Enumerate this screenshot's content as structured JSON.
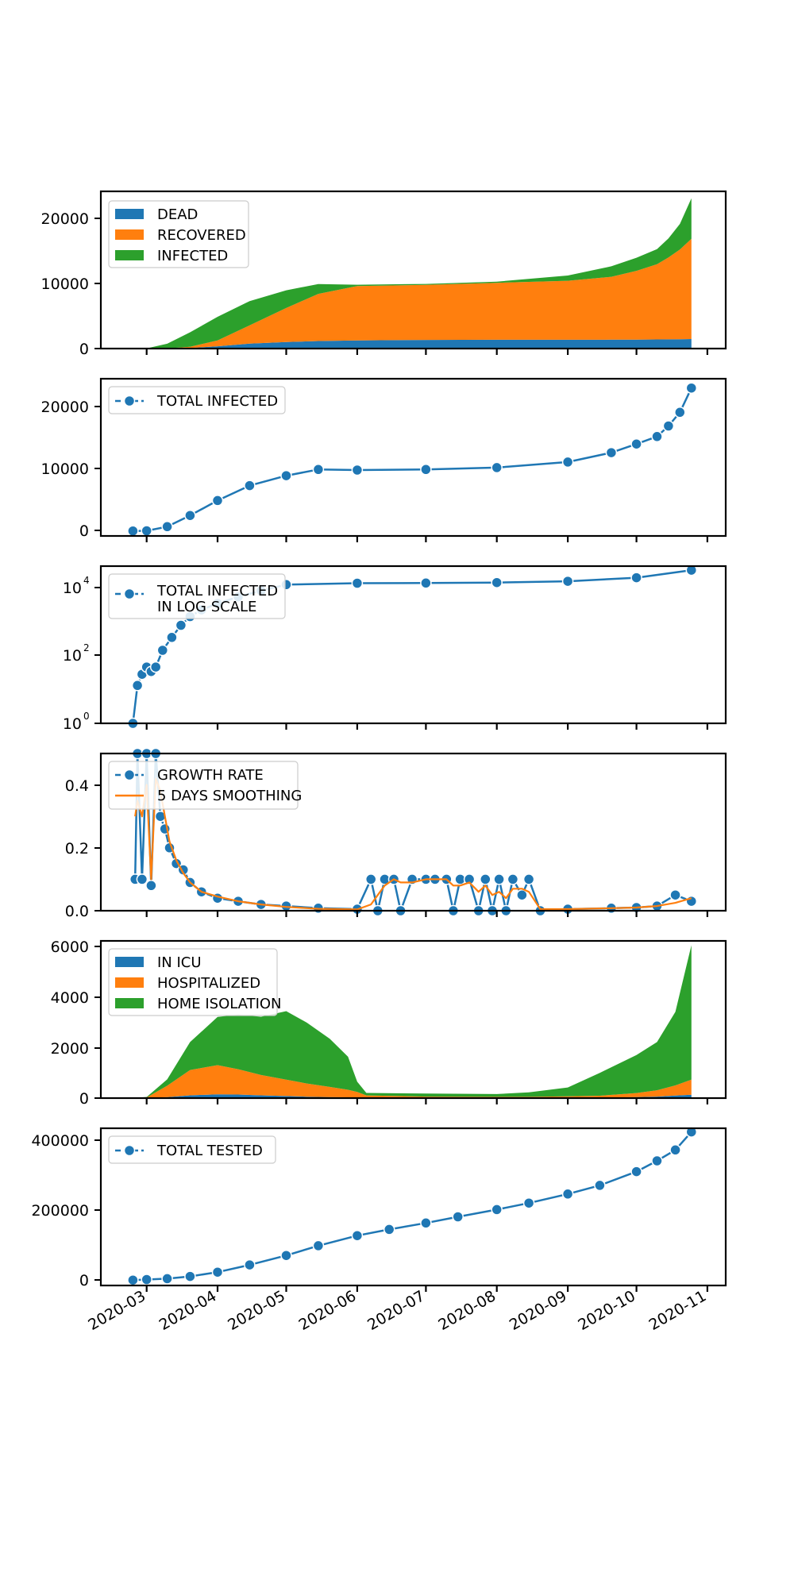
{
  "chart_data": [
    {
      "id": "p1",
      "type": "area",
      "stacked": true,
      "ylim": [
        0,
        24000
      ],
      "yticks": [
        0,
        10000,
        20000
      ],
      "legend_position": "upper-left",
      "x": [
        "2020-02-24",
        "2020-03-01",
        "2020-03-10",
        "2020-03-20",
        "2020-04-01",
        "2020-04-15",
        "2020-05-01",
        "2020-05-15",
        "2020-06-01",
        "2020-07-01",
        "2020-08-01",
        "2020-09-01",
        "2020-09-20",
        "2020-10-01",
        "2020-10-10",
        "2020-10-15",
        "2020-10-20",
        "2020-10-25"
      ],
      "series": [
        {
          "name": "DEAD",
          "color": "#1f77b4",
          "values": [
            0,
            2,
            20,
            80,
            350,
            750,
            1000,
            1150,
            1250,
            1320,
            1340,
            1350,
            1360,
            1370,
            1390,
            1410,
            1430,
            1450
          ]
        },
        {
          "name": "RECOVERED",
          "color": "#ff7f0e",
          "values": [
            0,
            0,
            20,
            200,
            900,
            2800,
            5200,
            7200,
            8300,
            8400,
            8700,
            9000,
            9600,
            10500,
            11500,
            12500,
            13700,
            15300
          ]
        },
        {
          "name": "INFECTED",
          "color": "#2ca02c",
          "values": [
            0,
            30,
            700,
            2200,
            3600,
            3700,
            2700,
            1500,
            200,
            150,
            180,
            800,
            1600,
            2000,
            2300,
            2900,
            3900,
            6200
          ]
        }
      ]
    },
    {
      "id": "p2",
      "type": "line",
      "marker": "circle",
      "ylim": [
        -800,
        24500
      ],
      "yticks": [
        0,
        10000,
        20000
      ],
      "legend_position": "upper-left",
      "series": [
        {
          "name": "TOTAL INFECTED",
          "color": "#1f77b4",
          "x": [
            "2020-02-24",
            "2020-03-01",
            "2020-03-10",
            "2020-03-20",
            "2020-04-01",
            "2020-04-15",
            "2020-05-01",
            "2020-05-15",
            "2020-06-01",
            "2020-07-01",
            "2020-08-01",
            "2020-09-01",
            "2020-09-20",
            "2020-10-01",
            "2020-10-10",
            "2020-10-15",
            "2020-10-20",
            "2020-10-25"
          ],
          "values": [
            0,
            30,
            700,
            2500,
            4900,
            7300,
            8900,
            9900,
            9800,
            9900,
            10200,
            11100,
            12600,
            14000,
            15200,
            16900,
            19100,
            23000
          ]
        }
      ]
    },
    {
      "id": "p3",
      "type": "line",
      "marker": "circle",
      "yscale": "log",
      "ylim": [
        1,
        30000
      ],
      "yticks": [
        1,
        100,
        10000
      ],
      "legend_position": "upper-left",
      "series": [
        {
          "name": "TOTAL INFECTED IN LOG SCALE",
          "color": "#1f77b4",
          "x": [
            "2020-02-24",
            "2020-02-26",
            "2020-02-28",
            "2020-03-01",
            "2020-03-03",
            "2020-03-05",
            "2020-03-08",
            "2020-03-12",
            "2020-03-16",
            "2020-03-20",
            "2020-03-25",
            "2020-04-01",
            "2020-04-10",
            "2020-04-20",
            "2020-05-01",
            "2020-06-01",
            "2020-07-01",
            "2020-08-01",
            "2020-09-01",
            "2020-10-01",
            "2020-10-25"
          ],
          "values": [
            1,
            12,
            25,
            40,
            30,
            40,
            120,
            280,
            620,
            1100,
            1700,
            2600,
            4000,
            6000,
            8900,
            9800,
            9900,
            10200,
            11100,
            14000,
            23000
          ]
        }
      ]
    },
    {
      "id": "p4",
      "type": "line",
      "marker": "circle",
      "ylim": [
        0,
        0.5
      ],
      "yticks": [
        0.0,
        0.2,
        0.4
      ],
      "legend_position": "upper-left",
      "x": [
        "2020-02-25",
        "2020-02-26",
        "2020-02-28",
        "2020-03-01",
        "2020-03-03",
        "2020-03-05",
        "2020-03-07",
        "2020-03-09",
        "2020-03-11",
        "2020-03-14",
        "2020-03-17",
        "2020-03-20",
        "2020-03-25",
        "2020-04-01",
        "2020-04-10",
        "2020-04-20",
        "2020-05-01",
        "2020-05-15",
        "2020-06-01",
        "2020-06-07",
        "2020-06-10",
        "2020-06-13",
        "2020-06-17",
        "2020-06-20",
        "2020-06-25",
        "2020-07-01",
        "2020-07-05",
        "2020-07-10",
        "2020-07-13",
        "2020-07-16",
        "2020-07-20",
        "2020-07-24",
        "2020-07-27",
        "2020-07-30",
        "2020-08-02",
        "2020-08-05",
        "2020-08-08",
        "2020-08-12",
        "2020-08-15",
        "2020-08-20",
        "2020-09-01",
        "2020-09-20",
        "2020-10-01",
        "2020-10-10",
        "2020-10-18",
        "2020-10-25"
      ],
      "series": [
        {
          "name": "GROWTH RATE",
          "color": "#1f77b4",
          "values": [
            0.1,
            0.5,
            0.1,
            0.5,
            0.08,
            0.5,
            0.3,
            0.26,
            0.2,
            0.15,
            0.13,
            0.09,
            0.06,
            0.04,
            0.03,
            0.02,
            0.015,
            0.008,
            0.005,
            0.1,
            0.0,
            0.1,
            0.1,
            0.0,
            0.1,
            0.1,
            0.1,
            0.1,
            0.0,
            0.1,
            0.1,
            0.0,
            0.1,
            0.0,
            0.1,
            0.0,
            0.1,
            0.05,
            0.1,
            0.0,
            0.005,
            0.008,
            0.01,
            0.015,
            0.05,
            0.03
          ]
        },
        {
          "name": "5 DAYS SMOOTHING",
          "color": "#ff7f0e",
          "values": [
            0.3,
            0.35,
            0.3,
            0.4,
            0.1,
            0.42,
            0.38,
            0.3,
            0.22,
            0.16,
            0.12,
            0.09,
            0.06,
            0.045,
            0.03,
            0.02,
            0.012,
            0.006,
            0.004,
            0.02,
            0.05,
            0.08,
            0.1,
            0.09,
            0.09,
            0.1,
            0.1,
            0.1,
            0.08,
            0.08,
            0.09,
            0.06,
            0.08,
            0.05,
            0.06,
            0.04,
            0.07,
            0.07,
            0.06,
            0.005,
            0.005,
            0.008,
            0.01,
            0.015,
            0.025,
            0.04
          ]
        }
      ]
    },
    {
      "id": "p5",
      "type": "area",
      "stacked": true,
      "ylim": [
        0,
        6200
      ],
      "yticks": [
        0,
        2000,
        4000,
        6000
      ],
      "legend_position": "upper-left",
      "x": [
        "2020-02-24",
        "2020-03-01",
        "2020-03-10",
        "2020-03-20",
        "2020-04-01",
        "2020-04-10",
        "2020-04-20",
        "2020-05-01",
        "2020-05-10",
        "2020-05-20",
        "2020-05-28",
        "2020-06-01",
        "2020-06-05",
        "2020-07-01",
        "2020-08-01",
        "2020-08-15",
        "2020-09-01",
        "2020-09-15",
        "2020-10-01",
        "2020-10-10",
        "2020-10-18",
        "2020-10-25"
      ],
      "series": [
        {
          "name": "IN ICU",
          "color": "#1f77b4",
          "values": [
            0,
            5,
            40,
            110,
            150,
            140,
            110,
            80,
            55,
            40,
            30,
            25,
            15,
            10,
            10,
            10,
            10,
            15,
            40,
            60,
            100,
            130
          ]
        },
        {
          "name": "HOSPITALIZED",
          "color": "#ff7f0e",
          "values": [
            0,
            20,
            450,
            1000,
            1150,
            1000,
            800,
            650,
            520,
            400,
            300,
            220,
            90,
            50,
            40,
            40,
            60,
            80,
            160,
            250,
            400,
            600
          ]
        },
        {
          "name": "HOME ISOLATION",
          "color": "#2ca02c",
          "values": [
            0,
            20,
            250,
            1100,
            1900,
            2150,
            2300,
            2700,
            2400,
            1900,
            1300,
            400,
            100,
            120,
            110,
            180,
            350,
            900,
            1500,
            1900,
            2900,
            5300
          ]
        }
      ]
    },
    {
      "id": "p6",
      "type": "line",
      "marker": "circle",
      "ylim": [
        -15000,
        420000
      ],
      "yticks": [
        0,
        200000,
        400000
      ],
      "legend_position": "upper-left",
      "series": [
        {
          "name": "TOTAL TESTED",
          "color": "#1f77b4",
          "x": [
            "2020-02-24",
            "2020-03-01",
            "2020-03-10",
            "2020-03-20",
            "2020-04-01",
            "2020-04-15",
            "2020-05-01",
            "2020-05-15",
            "2020-06-01",
            "2020-06-15",
            "2020-07-01",
            "2020-07-15",
            "2020-08-01",
            "2020-08-15",
            "2020-09-01",
            "2020-09-15",
            "2020-10-01",
            "2020-10-10",
            "2020-10-18",
            "2020-10-25"
          ],
          "values": [
            0,
            1500,
            4000,
            10000,
            22000,
            42000,
            68000,
            95000,
            123000,
            140000,
            158000,
            175000,
            195000,
            213000,
            238000,
            262000,
            300000,
            330000,
            360000,
            410000
          ]
        }
      ]
    }
  ],
  "xaxis": {
    "tick_dates": [
      "2020-03-01",
      "2020-04-01",
      "2020-05-01",
      "2020-06-01",
      "2020-07-01",
      "2020-08-01",
      "2020-09-01",
      "2020-10-01",
      "2020-11-01"
    ],
    "tick_labels": [
      "2020-03",
      "2020-04",
      "2020-05",
      "2020-06",
      "2020-07",
      "2020-08",
      "2020-09",
      "2020-10",
      "2020-11"
    ]
  },
  "tick_text": {
    "p1": [
      "0",
      "10000",
      "20000"
    ],
    "p2": [
      "0",
      "10000",
      "20000"
    ],
    "p3": [
      "10",
      "10",
      "10"
    ],
    "p3_exp": [
      "0",
      "2",
      "4"
    ],
    "p4": [
      "0.0",
      "0.2",
      "0.4"
    ],
    "p5": [
      "0",
      "2000",
      "4000",
      "6000"
    ],
    "p6": [
      "0",
      "200000",
      "400000"
    ]
  },
  "legends": {
    "p1": [
      "DEAD",
      "RECOVERED",
      "INFECTED"
    ],
    "p2": [
      "TOTAL INFECTED"
    ],
    "p3": [
      "TOTAL INFECTED",
      "IN LOG SCALE"
    ],
    "p4": [
      "GROWTH RATE",
      "5 DAYS SMOOTHING"
    ],
    "p5": [
      "IN ICU",
      "HOSPITALIZED",
      "HOME ISOLATION"
    ],
    "p6": [
      "TOTAL TESTED"
    ]
  }
}
